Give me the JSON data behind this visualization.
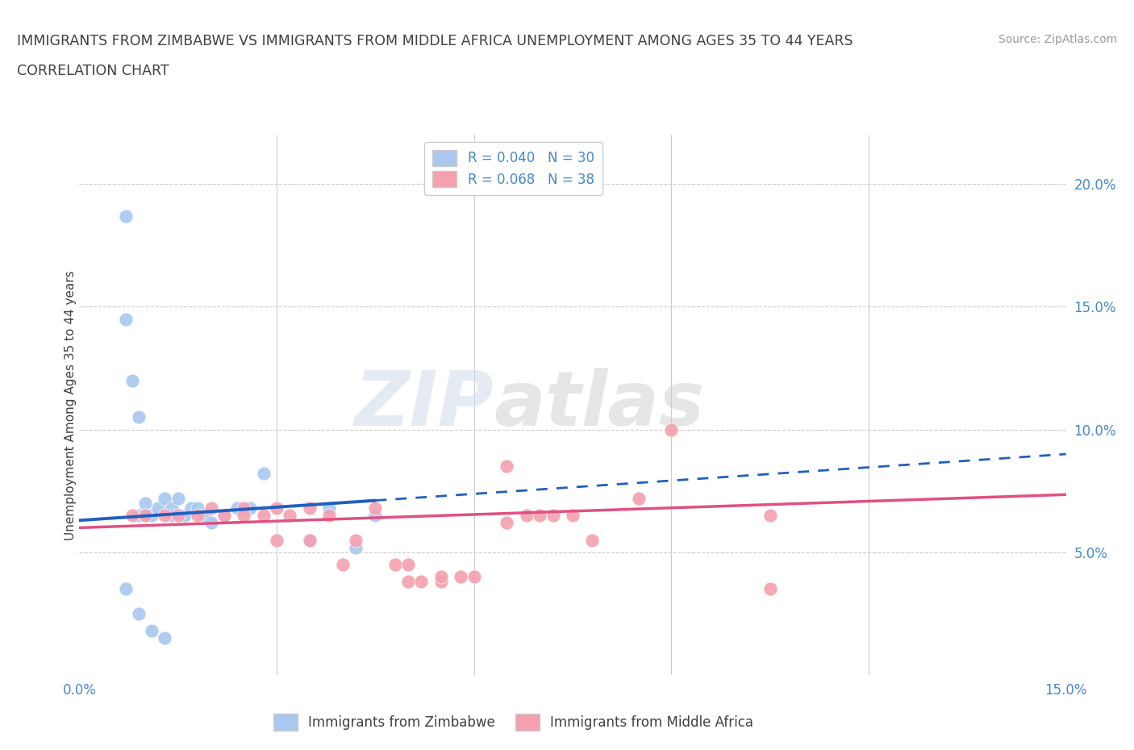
{
  "title_line1": "IMMIGRANTS FROM ZIMBABWE VS IMMIGRANTS FROM MIDDLE AFRICA UNEMPLOYMENT AMONG AGES 35 TO 44 YEARS",
  "title_line2": "CORRELATION CHART",
  "source": "Source: ZipAtlas.com",
  "ylabel": "Unemployment Among Ages 35 to 44 years",
  "xlim": [
    0.0,
    0.15
  ],
  "ylim": [
    0.0,
    0.22
  ],
  "xticks": [
    0.0,
    0.03,
    0.06,
    0.09,
    0.12,
    0.15
  ],
  "xticklabels": [
    "0.0%",
    "",
    "",
    "",
    "",
    "15.0%"
  ],
  "yticks_right": [
    0.05,
    0.1,
    0.15,
    0.2
  ],
  "yticklabels_right": [
    "5.0%",
    "10.0%",
    "15.0%",
    "20.0%"
  ],
  "zimbabwe_color": "#a8c8f0",
  "middle_africa_color": "#f4a0b0",
  "zimbabwe_line_color": "#2060c0",
  "middle_africa_line_color": "#e05080",
  "R_zimbabwe": 0.04,
  "N_zimbabwe": 30,
  "R_middle_africa": 0.068,
  "N_middle_africa": 38,
  "legend_label_1": "Immigrants from Zimbabwe",
  "legend_label_2": "Immigrants from Middle Africa",
  "watermark_zip": "ZIP",
  "watermark_atlas": "atlas",
  "zimbabwe_x": [
    0.007,
    0.007,
    0.008,
    0.009,
    0.009,
    0.01,
    0.01,
    0.011,
    0.012,
    0.013,
    0.014,
    0.014,
    0.015,
    0.016,
    0.017,
    0.018,
    0.019,
    0.02,
    0.022,
    0.024,
    0.026,
    0.028,
    0.035,
    0.038,
    0.042,
    0.045,
    0.007,
    0.009,
    0.011,
    0.013
  ],
  "zimbabwe_y": [
    0.187,
    0.145,
    0.12,
    0.105,
    0.065,
    0.07,
    0.065,
    0.065,
    0.068,
    0.072,
    0.068,
    0.065,
    0.072,
    0.065,
    0.068,
    0.068,
    0.065,
    0.062,
    0.065,
    0.068,
    0.068,
    0.082,
    0.055,
    0.068,
    0.052,
    0.065,
    0.035,
    0.025,
    0.018,
    0.015
  ],
  "middle_africa_x": [
    0.008,
    0.01,
    0.013,
    0.015,
    0.018,
    0.02,
    0.022,
    0.025,
    0.025,
    0.028,
    0.03,
    0.03,
    0.032,
    0.035,
    0.035,
    0.038,
    0.04,
    0.042,
    0.045,
    0.048,
    0.05,
    0.05,
    0.052,
    0.055,
    0.055,
    0.058,
    0.06,
    0.065,
    0.065,
    0.068,
    0.07,
    0.072,
    0.075,
    0.078,
    0.085,
    0.09,
    0.105,
    0.105
  ],
  "middle_africa_y": [
    0.065,
    0.065,
    0.065,
    0.065,
    0.065,
    0.068,
    0.065,
    0.068,
    0.065,
    0.065,
    0.068,
    0.055,
    0.065,
    0.068,
    0.055,
    0.065,
    0.045,
    0.055,
    0.068,
    0.045,
    0.045,
    0.038,
    0.038,
    0.038,
    0.04,
    0.04,
    0.04,
    0.062,
    0.085,
    0.065,
    0.065,
    0.065,
    0.065,
    0.055,
    0.072,
    0.1,
    0.035,
    0.065
  ],
  "zim_line_start": 0.0,
  "zim_line_solid_end": 0.045,
  "zim_line_dash_end": 0.15,
  "mid_line_start": 0.0,
  "mid_line_end": 0.15,
  "zim_intercept": 0.063,
  "zim_slope": 0.18,
  "mid_intercept": 0.06,
  "mid_slope": 0.09
}
